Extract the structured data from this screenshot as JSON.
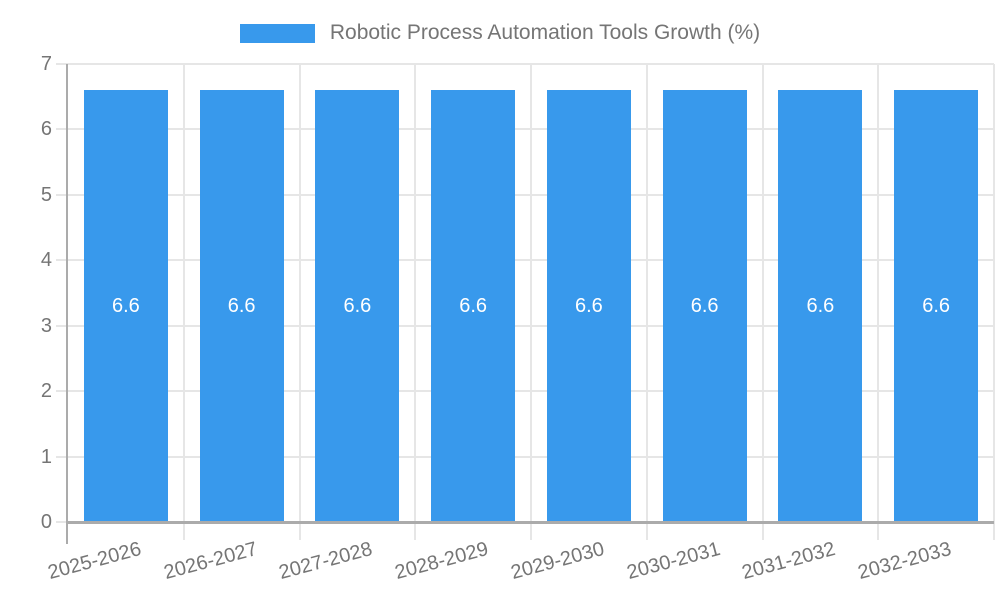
{
  "legend": {
    "label": "Robotic Process Automation Tools Growth (%)"
  },
  "chart_data": {
    "type": "bar",
    "title": "Robotic Process Automation Tools Growth (%)",
    "xlabel": "",
    "ylabel": "",
    "categories": [
      "2025-2026",
      "2026-2027",
      "2027-2028",
      "2028-2029",
      "2029-2030",
      "2030-2031",
      "2031-2032",
      "2032-2033"
    ],
    "values": [
      6.6,
      6.6,
      6.6,
      6.6,
      6.6,
      6.6,
      6.6,
      6.6
    ],
    "bar_labels": [
      "6.6",
      "6.6",
      "6.6",
      "6.6",
      "6.6",
      "6.6",
      "6.6",
      "6.6"
    ],
    "ylim": [
      0,
      7
    ],
    "yticks": [
      0,
      1,
      2,
      3,
      4,
      5,
      6,
      7
    ],
    "grid": true,
    "legend_position": "top",
    "x_label_rotation_deg": -15,
    "colors": {
      "bar": "#3899EC",
      "grid": "#E6E6E6",
      "axis": "#ABABAB",
      "tick_text": "#757575",
      "legend_text": "#757575",
      "value_label": "#FFFFFF",
      "background": "#FFFFFF"
    }
  }
}
